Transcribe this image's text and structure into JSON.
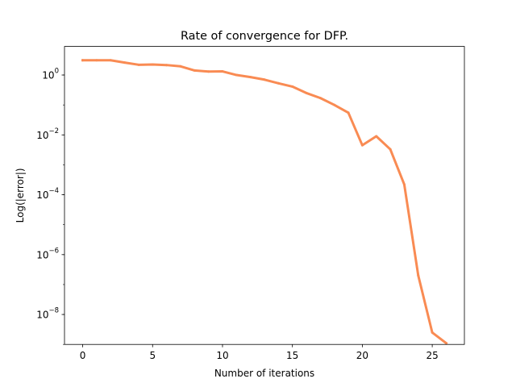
{
  "chart_data": {
    "type": "line",
    "title": "Rate of convergence for DFP.",
    "xlabel": "Number of iterations",
    "ylabel": "Log(|error|)",
    "xscale": "linear",
    "yscale": "log",
    "xlim": [
      -1.3,
      27.3
    ],
    "ylim": [
      1e-09,
      9.0
    ],
    "xticks": [
      0,
      5,
      10,
      15,
      20,
      25
    ],
    "yticks": [
      {
        "value": 1,
        "mantissa": "10",
        "exponent": "0"
      },
      {
        "value": 0.01,
        "mantissa": "10",
        "exponent": "−2"
      },
      {
        "value": 0.0001,
        "mantissa": "10",
        "exponent": "−4"
      },
      {
        "value": 1e-06,
        "mantissa": "10",
        "exponent": "−6"
      },
      {
        "value": 1e-08,
        "mantissa": "10",
        "exponent": "−8"
      }
    ],
    "grid": false,
    "legend": "none",
    "series": [
      {
        "color": "#f98b53",
        "x": [
          0,
          1,
          2,
          3,
          4,
          5,
          6,
          7,
          8,
          9,
          10,
          11,
          12,
          13,
          14,
          15,
          16,
          17,
          18,
          19,
          20,
          21,
          22,
          23,
          24,
          25,
          26
        ],
        "y": [
          3.1,
          3.1,
          3.1,
          2.6,
          2.2,
          2.25,
          2.15,
          1.95,
          1.42,
          1.3,
          1.32,
          1.0,
          0.85,
          0.7,
          0.53,
          0.41,
          0.25,
          0.17,
          0.1,
          0.055,
          0.0045,
          0.009,
          0.0033,
          0.00022,
          2e-07,
          2.5e-09,
          1.1e-09
        ]
      }
    ]
  }
}
